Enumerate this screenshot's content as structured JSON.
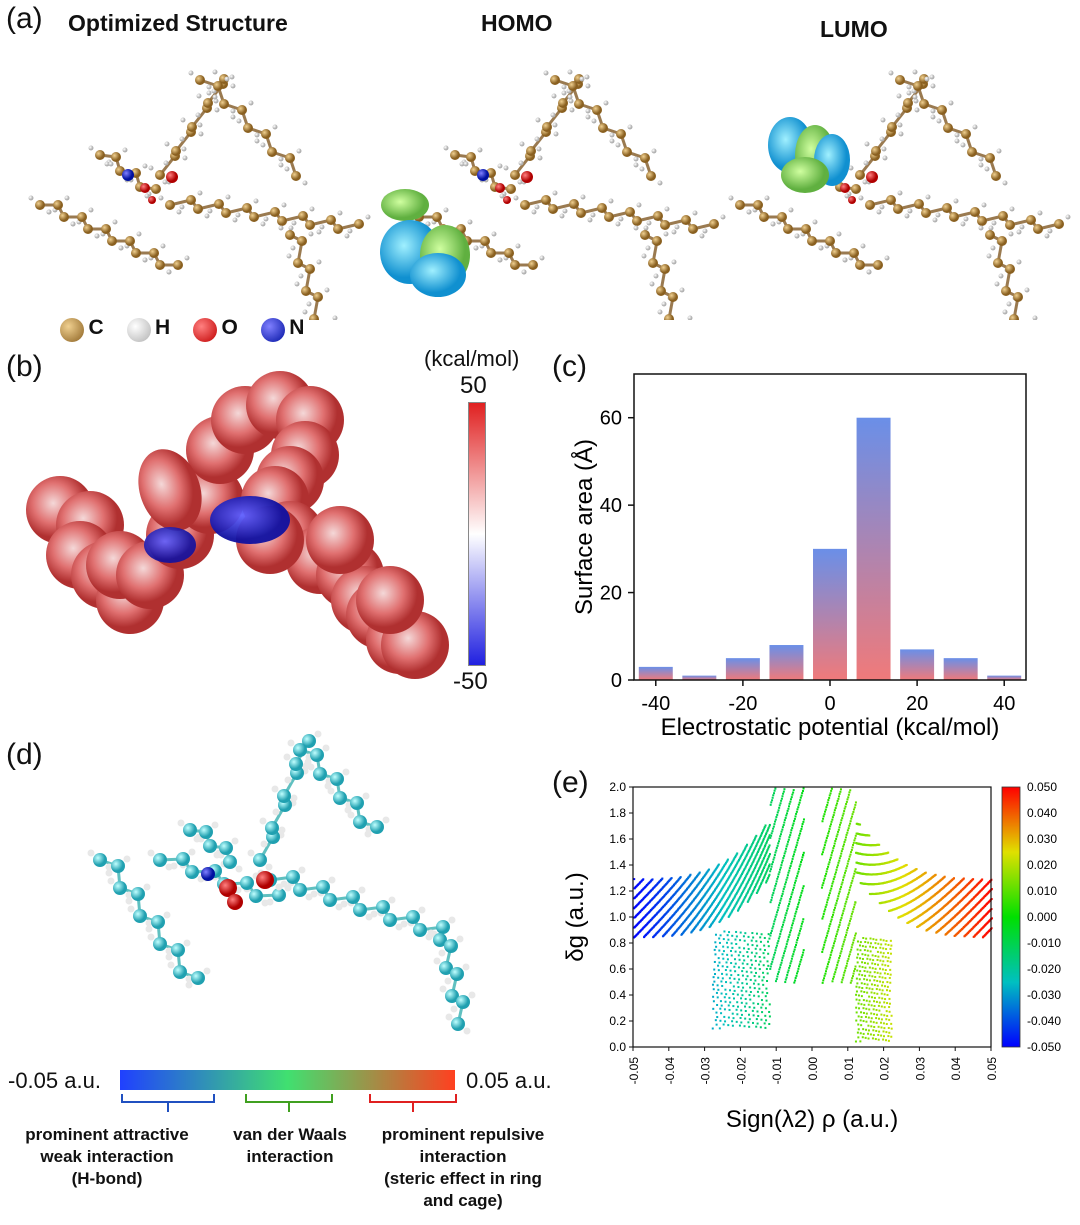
{
  "panel_a": {
    "label": "(a)",
    "titles": [
      "Optimized Structure",
      "HOMO",
      "LUMO"
    ],
    "atom_legend": [
      {
        "symbol": "C",
        "color": "#b8862e"
      },
      {
        "symbol": "H",
        "color": "#e6e6e6"
      },
      {
        "symbol": "O",
        "color": "#e01414"
      },
      {
        "symbol": "N",
        "color": "#1428c8"
      }
    ]
  },
  "panel_b": {
    "label": "(b)",
    "colorbar": {
      "unit": "(kcal/mol)",
      "max": "50",
      "min": "-50",
      "colors": [
        "#e02020",
        "#ffffff",
        "#2020e0"
      ]
    }
  },
  "panel_c": {
    "label": "(c)"
  },
  "panel_d": {
    "label": "(d)",
    "colorbar": {
      "left": "-0.05 a.u.",
      "right": "0.05 a.u.",
      "colors": [
        "#2040ff",
        "#40e070",
        "#ff4020"
      ]
    },
    "annotations": [
      {
        "text": "prominent attractive weak interaction (H-bond)",
        "lines": [
          "prominent attractive",
          "weak interaction",
          "(H-bond)"
        ],
        "color": "#2050c0"
      },
      {
        "text": "van der Waals interaction",
        "lines": [
          "van der Waals",
          "interaction"
        ],
        "color": "#40a020"
      },
      {
        "text": "prominent repulsive interaction (steric effect in ring and cage)",
        "lines": [
          "prominent repulsive",
          "interaction",
          "(steric effect in ring",
          "and cage)"
        ],
        "color": "#e02020"
      }
    ]
  },
  "panel_e": {
    "label": "(e)"
  },
  "chart_data": [
    {
      "type": "bar",
      "title": "",
      "xlabel": "Electrostatic potential (kcal/mol)",
      "ylabel": "Surface area (Å)",
      "x": [
        -40,
        -30,
        -20,
        -10,
        0,
        10,
        20,
        30,
        40
      ],
      "values": [
        3,
        1,
        5,
        8,
        30,
        60,
        7,
        5,
        1
      ],
      "xticks": [
        "-40",
        "-20",
        "0",
        "20",
        "40"
      ],
      "yticks": [
        "0",
        "20",
        "40",
        "60"
      ],
      "xlim": [
        -45,
        45
      ],
      "ylim": [
        0,
        70
      ],
      "bar_gradient": [
        "#6a8fe8",
        "#f07a7a"
      ]
    },
    {
      "type": "scatter",
      "title": "",
      "xlabel": "Sign(λ2) ρ (a.u.)",
      "ylabel": "δg (a.u.)",
      "xlim": [
        -0.05,
        0.05
      ],
      "ylim": [
        0,
        2.0
      ],
      "xticks": [
        "-0.05",
        "-0.04",
        "-0.03",
        "-0.02",
        "-0.01",
        "0.00",
        "0.01",
        "0.02",
        "0.03",
        "0.04",
        "0.05"
      ],
      "yticks": [
        "0.0",
        "0.2",
        "0.4",
        "0.6",
        "0.8",
        "1.0",
        "1.2",
        "1.4",
        "1.6",
        "1.8",
        "2.0"
      ],
      "colorbar_ticks": [
        "0.050",
        "0.040",
        "0.030",
        "0.020",
        "0.010",
        "0.000",
        "-0.010",
        "-0.020",
        "-0.030",
        "-0.040",
        "-0.050"
      ],
      "colormap": [
        "#0000ff",
        "#00c0c0",
        "#00e000",
        "#e0e000",
        "#ff0000"
      ]
    }
  ]
}
